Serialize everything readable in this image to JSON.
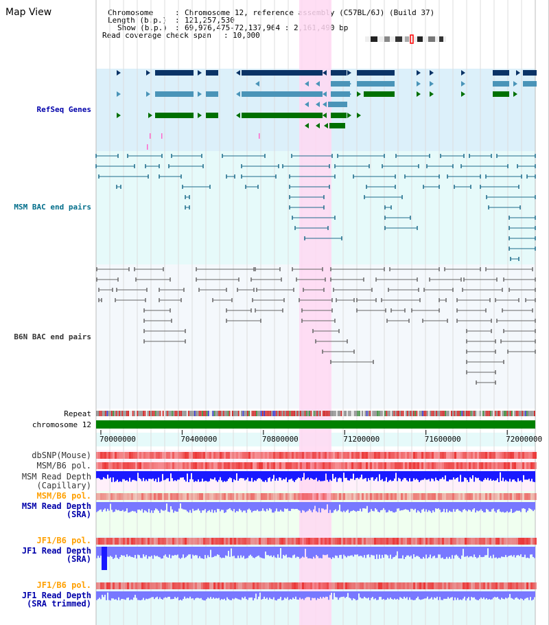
{
  "title": "Map View",
  "info": {
    "chromosome_key": "Chromosome",
    "chromosome_value": "Chromosome 12, reference assembly (C57BL/6J) (Build 37)",
    "length_key": "Length (b.p.)",
    "length_value": "121,257,530",
    "show_key": "Show (b.p.)",
    "show_value": "69,976,475-72,137,964 : 2,161,490 bp",
    "coverage_key": "Read coverage check span",
    "coverage_value": "10,000"
  },
  "tracks": {
    "refseq": "RefSeq Genes",
    "msm_bac": "MSM BAC end pairs",
    "b6n_bac": "B6N BAC end pairs",
    "repeat": "Repeat",
    "chromosome": "chromosome 12",
    "dbsnp": "dbSNP(Mouse)",
    "msm_b6_pol": "MSM/B6 pol.",
    "msm_read_depth_cap_1": "MSM Read Depth",
    "msm_read_depth_cap_2": "(Capillary)",
    "msm_b6_pol_2": "MSM/B6 pol.",
    "msm_read_depth_sra_1": "MSM Read Depth",
    "msm_read_depth_sra_2": "(SRA)",
    "jf1_b6_pol": "JF1/B6 pol.",
    "jf1_read_depth_sra_1": "JF1 Read Depth",
    "jf1_read_depth_sra_2": "(SRA)",
    "jf1_b6_pol_2": "JF1/B6 pol.",
    "jf1_read_depth_trim_1": "JF1 Read Depth",
    "jf1_read_depth_trim_2": "(SRA trimmed)"
  },
  "axis": {
    "ticks": [
      "70000000",
      "70400000",
      "70800000",
      "71200000",
      "71600000",
      "72000000"
    ],
    "range": [
      69976475,
      72137964
    ]
  },
  "colors": {
    "highlight": "#ffd8f2",
    "refseq_bg": "#dcf0fa",
    "msm_bg": "#e6fafa",
    "b6n_bg": "#f4f8fc",
    "gene_navy": "#0b3366",
    "gene_teal": "#4a94b8",
    "gene_green": "#007000",
    "msm_line": "#1c6b8a",
    "b6n_line": "#666666",
    "depth_blue": "#1a1aff",
    "depth_light": "#7878ff",
    "label_blue": "#0000aa",
    "label_teal": "#006d8a",
    "label_orange": "#ffa000"
  }
}
